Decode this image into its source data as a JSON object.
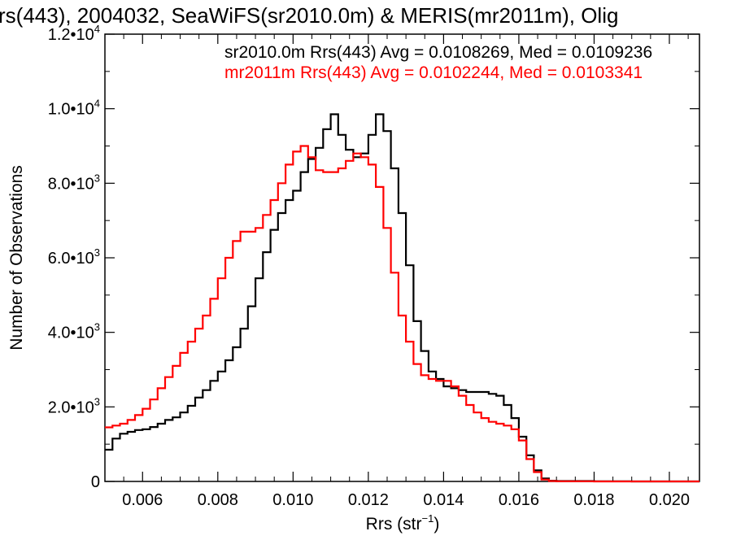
{
  "chart_data": {
    "type": "line",
    "title": "rs(443), 2004032, SeaWiFS(sr2010.0m) & MERIS(mr2011m), Olig",
    "xlabel": "Rrs (str",
    "xlabel_sup": "−1",
    "xlabel_close": ")",
    "ylabel": "Number of Observations",
    "xlim": [
      0.005,
      0.0208
    ],
    "ylim": [
      0,
      12000
    ],
    "grid": false,
    "step": true,
    "x_ticks": [
      {
        "value": 0.006,
        "label": "0.006"
      },
      {
        "value": 0.008,
        "label": "0.008"
      },
      {
        "value": 0.01,
        "label": "0.010"
      },
      {
        "value": 0.012,
        "label": "0.012"
      },
      {
        "value": 0.014,
        "label": "0.014"
      },
      {
        "value": 0.016,
        "label": "0.016"
      },
      {
        "value": 0.018,
        "label": "0.018"
      },
      {
        "value": 0.02,
        "label": "0.020"
      }
    ],
    "y_ticks": [
      {
        "value": 0,
        "mant": "0",
        "exp": ""
      },
      {
        "value": 2000,
        "mant": "2.0•10",
        "exp": "3"
      },
      {
        "value": 4000,
        "mant": "4.0•10",
        "exp": "3"
      },
      {
        "value": 6000,
        "mant": "6.0•10",
        "exp": "3"
      },
      {
        "value": 8000,
        "mant": "8.0•10",
        "exp": "3"
      },
      {
        "value": 10000,
        "mant": "1.0•10",
        "exp": "4"
      },
      {
        "value": 12000,
        "mant": "1.2•10",
        "exp": "4"
      }
    ],
    "annotations": [
      {
        "text": "sr2010.0m Rrs(443) Avg = 0.0108269, Med = 0.0109236",
        "color": "#000000"
      },
      {
        "text": "mr2011m Rrs(443) Avg = 0.0102244, Med = 0.0103341",
        "color": "#ff0000"
      }
    ],
    "series": [
      {
        "color": "#000000",
        "x": [
          0.005,
          0.0052,
          0.0054,
          0.0056,
          0.0058,
          0.006,
          0.0062,
          0.0064,
          0.0066,
          0.0068,
          0.007,
          0.0072,
          0.0074,
          0.0076,
          0.0078,
          0.008,
          0.0082,
          0.0084,
          0.0086,
          0.0088,
          0.009,
          0.0092,
          0.0094,
          0.0096,
          0.0098,
          0.01,
          0.0102,
          0.0104,
          0.0106,
          0.0108,
          0.011,
          0.0112,
          0.0114,
          0.0116,
          0.0118,
          0.012,
          0.0122,
          0.0124,
          0.0126,
          0.0128,
          0.013,
          0.0132,
          0.0134,
          0.0136,
          0.0138,
          0.014,
          0.0142,
          0.0144,
          0.0146,
          0.0148,
          0.015,
          0.0152,
          0.0154,
          0.0156,
          0.0158,
          0.016,
          0.0162,
          0.0164,
          0.0166,
          0.0168,
          0.017,
          0.018,
          0.019,
          0.02,
          0.0208
        ],
        "y": [
          850,
          1150,
          1280,
          1330,
          1380,
          1400,
          1460,
          1550,
          1650,
          1720,
          1850,
          2030,
          2250,
          2450,
          2700,
          2950,
          3250,
          3600,
          4100,
          4700,
          5450,
          6150,
          6750,
          7200,
          7550,
          7800,
          8300,
          8650,
          8950,
          9450,
          9850,
          9300,
          8900,
          8700,
          8800,
          9300,
          9850,
          9400,
          8400,
          7200,
          5800,
          4300,
          3500,
          2950,
          2750,
          2550,
          2500,
          2450,
          2400,
          2400,
          2400,
          2350,
          2300,
          2050,
          1700,
          1200,
          700,
          300,
          80,
          20,
          10,
          5,
          0,
          0,
          0
        ]
      },
      {
        "color": "#ff0000",
        "x": [
          0.005,
          0.0052,
          0.0054,
          0.0056,
          0.0058,
          0.006,
          0.0062,
          0.0064,
          0.0066,
          0.0068,
          0.007,
          0.0072,
          0.0074,
          0.0076,
          0.0078,
          0.008,
          0.0082,
          0.0084,
          0.0086,
          0.0088,
          0.009,
          0.0092,
          0.0094,
          0.0096,
          0.0098,
          0.01,
          0.0102,
          0.0104,
          0.0106,
          0.0108,
          0.011,
          0.0112,
          0.0114,
          0.0116,
          0.0118,
          0.012,
          0.0122,
          0.0124,
          0.0126,
          0.0128,
          0.013,
          0.0132,
          0.0134,
          0.0136,
          0.0138,
          0.014,
          0.0142,
          0.0144,
          0.0146,
          0.0148,
          0.015,
          0.0152,
          0.0154,
          0.0156,
          0.0158,
          0.016,
          0.0162,
          0.0164,
          0.0166,
          0.0168,
          0.017,
          0.018,
          0.019,
          0.02,
          0.0208
        ],
        "y": [
          1450,
          1500,
          1550,
          1650,
          1780,
          1950,
          2200,
          2500,
          2800,
          3100,
          3450,
          3750,
          4100,
          4450,
          4900,
          5450,
          6000,
          6450,
          6700,
          6700,
          6800,
          7150,
          7550,
          8000,
          8500,
          8850,
          9000,
          8700,
          8350,
          8300,
          8300,
          8400,
          8600,
          8800,
          8700,
          8500,
          7900,
          6800,
          5600,
          4450,
          3750,
          3150,
          2850,
          2750,
          2700,
          2700,
          2550,
          2300,
          2050,
          1850,
          1700,
          1600,
          1550,
          1500,
          1400,
          1100,
          600,
          250,
          50,
          10,
          5,
          0,
          0,
          0,
          0
        ]
      }
    ]
  }
}
